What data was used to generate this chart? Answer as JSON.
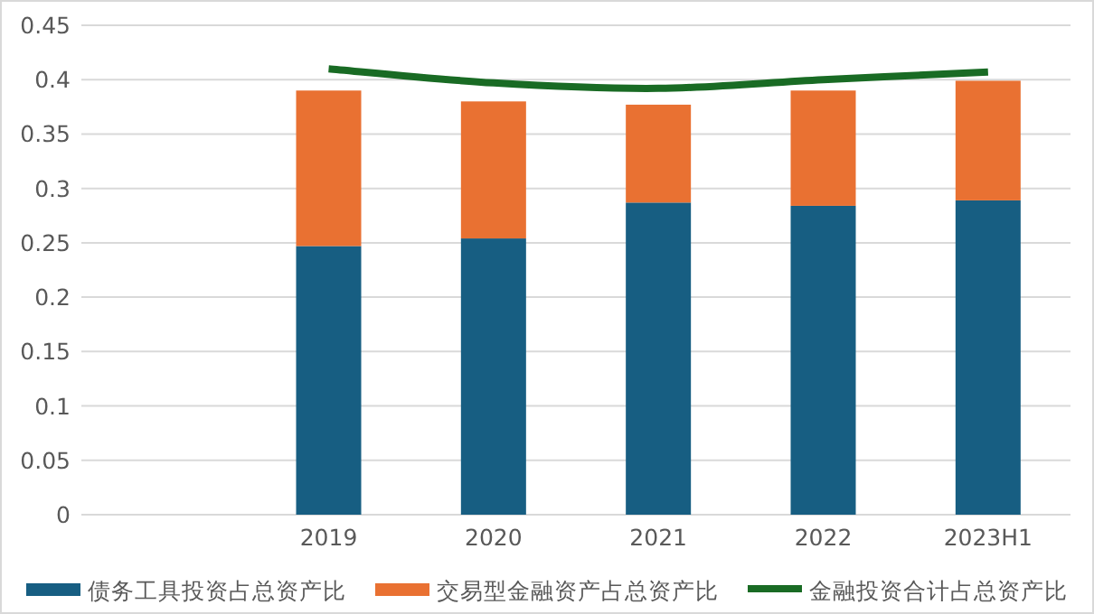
{
  "chart_data": {
    "type": "bar",
    "stacked": true,
    "categories": [
      null,
      "2019",
      "2020",
      "2021",
      "2022",
      "2023H1"
    ],
    "series": [
      {
        "name": "债务工具投资占总资产比",
        "color": "#175e82",
        "values": [
          null,
          0.247,
          0.254,
          0.287,
          0.284,
          0.289
        ]
      },
      {
        "name": "交易型金融资产占总资产比",
        "color": "#e97132",
        "values": [
          null,
          0.143,
          0.126,
          0.09,
          0.106,
          0.11
        ]
      },
      {
        "name": "金融投资合计占总资产比",
        "type": "line",
        "color": "#196b24",
        "values": [
          null,
          0.41,
          0.397,
          0.392,
          0.4,
          0.407
        ]
      }
    ],
    "ylim": [
      0,
      0.45
    ],
    "yticks": [
      0,
      0.05,
      0.1,
      0.15,
      0.2,
      0.25,
      0.3,
      0.35,
      0.4,
      0.45
    ],
    "grid": "y",
    "legend": "bottom"
  }
}
